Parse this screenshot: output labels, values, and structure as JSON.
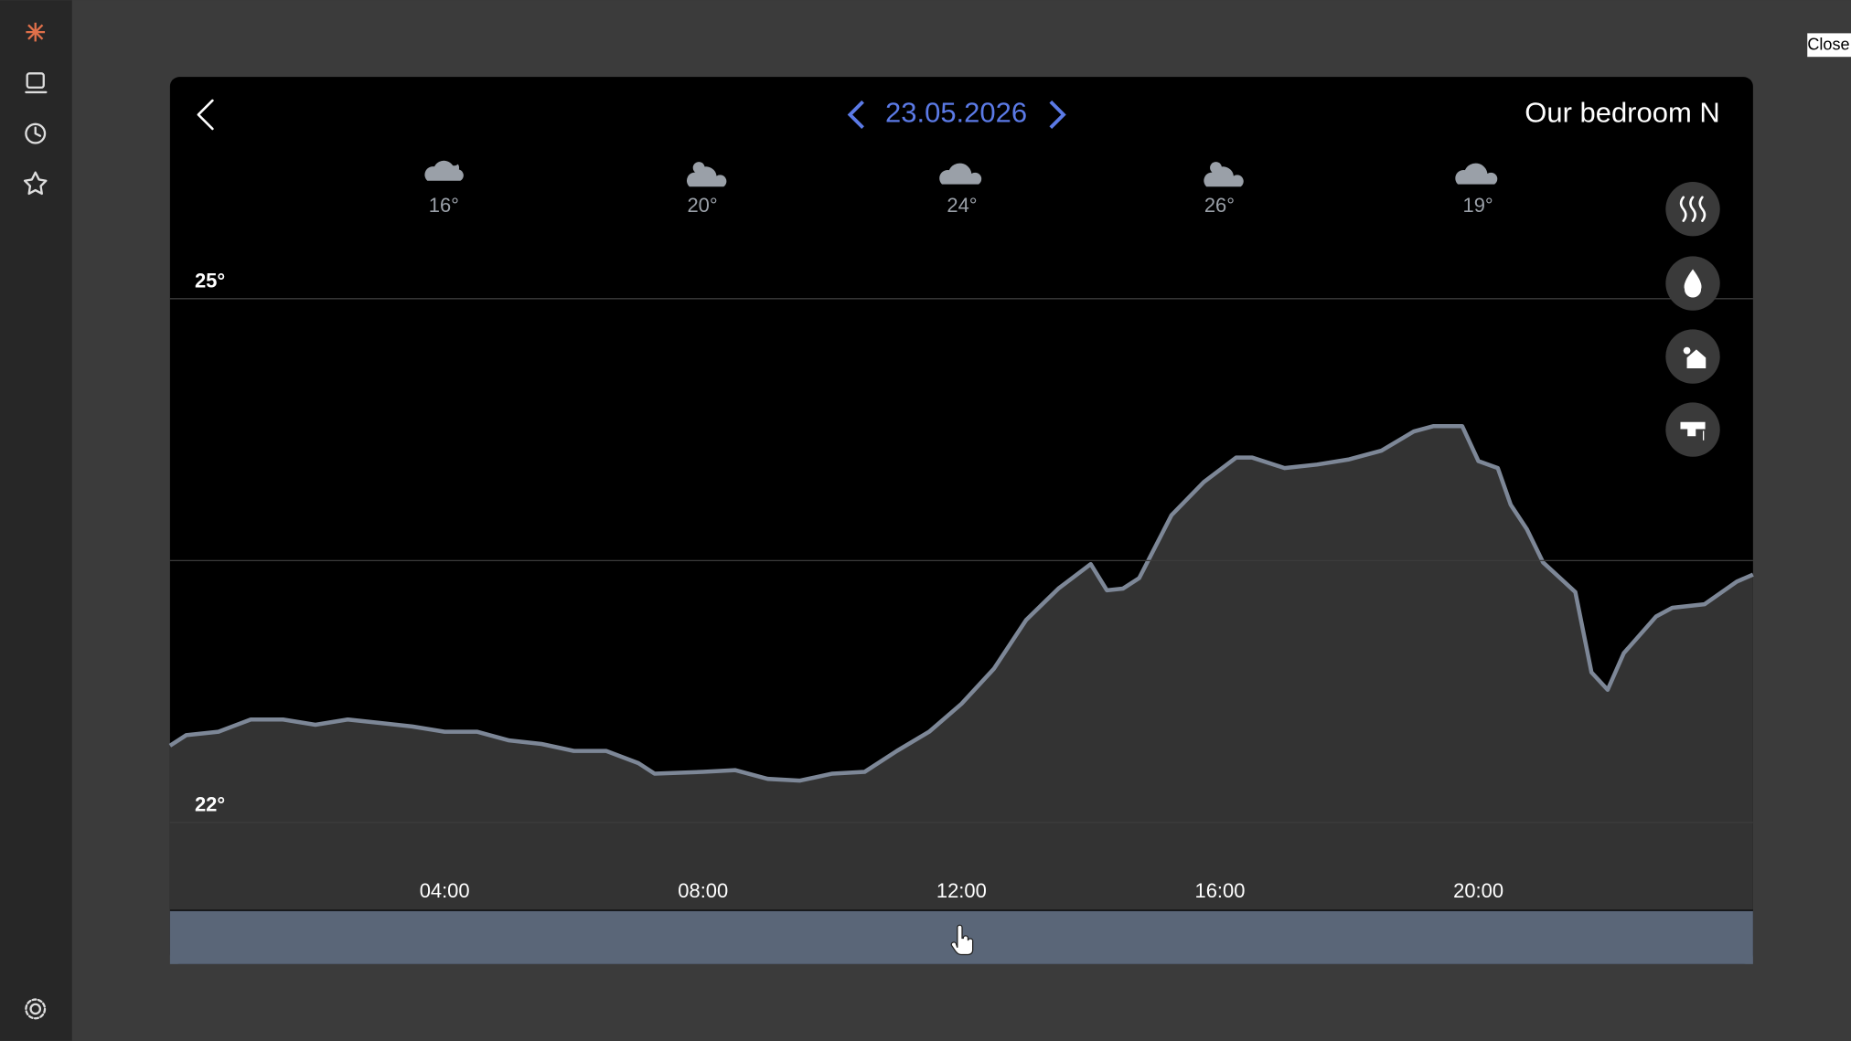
{
  "close_button": "Close",
  "header": {
    "date": "23.05.2026",
    "room": "Our bedroom N"
  },
  "forecast": [
    "16°",
    "20°",
    "24°",
    "26°",
    "19°"
  ],
  "chart_data": {
    "type": "area",
    "x": [
      -0.25,
      0,
      0.5,
      1,
      1.5,
      2,
      2.5,
      3,
      3.5,
      4,
      4.5,
      5,
      5.5,
      6,
      6.5,
      7,
      7.25,
      8,
      8.5,
      9,
      9.5,
      10,
      10.5,
      11,
      11.5,
      12,
      12.5,
      13,
      13.5,
      14,
      14.25,
      14.5,
      14.75,
      15.25,
      15.75,
      16.25,
      16.5,
      17,
      17.5,
      18,
      18.5,
      19,
      19.3,
      19.75,
      20,
      20.3,
      20.5,
      20.75,
      21,
      21.5,
      21.75,
      22,
      22.25,
      22.75,
      23,
      23.5,
      24,
      24.25
    ],
    "series": [
      {
        "color": "#7d8797",
        "fill": "#333333",
        "values": [
          22.44,
          22.5,
          22.52,
          22.59,
          22.59,
          22.56,
          22.59,
          22.57,
          22.55,
          22.52,
          22.52,
          22.47,
          22.45,
          22.41,
          22.41,
          22.34,
          22.28,
          22.29,
          22.3,
          22.25,
          22.24,
          22.28,
          22.29,
          22.41,
          22.52,
          22.68,
          22.88,
          23.16,
          23.34,
          23.48,
          23.33,
          23.34,
          23.4,
          23.76,
          23.95,
          24.09,
          24.09,
          24.03,
          24.05,
          24.08,
          24.13,
          24.24,
          24.27,
          24.27,
          24.07,
          24.03,
          23.82,
          23.68,
          23.49,
          23.32,
          22.86,
          22.76,
          22.97,
          23.18,
          23.23,
          23.25,
          23.38,
          23.42
        ]
      }
    ],
    "xlim": [
      -0.25,
      24.25
    ],
    "xticks": [
      {
        "value": 4,
        "label": "04:00"
      },
      {
        "value": 8,
        "label": "08:00"
      },
      {
        "value": 12,
        "label": "12:00"
      },
      {
        "value": 16,
        "label": "16:00"
      },
      {
        "value": 20,
        "label": "20:00"
      }
    ],
    "ylim": [
      21.5,
      25.5
    ],
    "yticks": [
      {
        "value": 25,
        "label": "25°"
      },
      {
        "value": 22,
        "label": "22°"
      }
    ],
    "grid_lines": [
      25,
      23.5,
      22
    ]
  }
}
